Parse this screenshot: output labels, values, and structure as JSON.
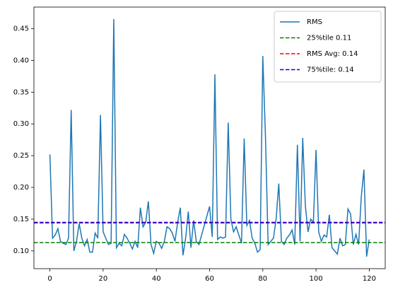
{
  "chart_data": {
    "type": "line",
    "x": [
      0,
      1,
      2,
      3,
      4,
      5,
      6,
      7,
      8,
      9,
      10,
      11,
      12,
      13,
      14,
      15,
      16,
      17,
      18,
      19,
      20,
      21,
      22,
      23,
      24,
      25,
      26,
      27,
      28,
      29,
      30,
      31,
      32,
      33,
      34,
      35,
      36,
      37,
      38,
      39,
      40,
      41,
      42,
      43,
      44,
      45,
      46,
      47,
      48,
      49,
      50,
      51,
      52,
      53,
      54,
      55,
      56,
      57,
      58,
      59,
      60,
      61,
      62,
      63,
      64,
      65,
      66,
      67,
      68,
      69,
      70,
      71,
      72,
      73,
      74,
      75,
      76,
      77,
      78,
      79,
      80,
      81,
      82,
      83,
      84,
      85,
      86,
      87,
      88,
      89,
      90,
      91,
      92,
      93,
      94,
      95,
      96,
      97,
      98,
      99,
      100,
      101,
      102,
      103,
      104,
      105,
      106,
      107,
      108,
      109,
      110,
      111,
      112,
      113,
      114,
      115,
      116,
      117,
      118,
      119,
      120
    ],
    "series": [
      {
        "name": "RMS",
        "color": "#1f77b4",
        "values": [
          0.252,
          0.12,
          0.125,
          0.135,
          0.115,
          0.112,
          0.11,
          0.12,
          0.322,
          0.1,
          0.115,
          0.143,
          0.12,
          0.108,
          0.118,
          0.098,
          0.098,
          0.128,
          0.12,
          0.314,
          0.13,
          0.12,
          0.11,
          0.112,
          0.465,
          0.105,
          0.112,
          0.108,
          0.126,
          0.12,
          0.112,
          0.103,
          0.115,
          0.105,
          0.168,
          0.138,
          0.145,
          0.178,
          0.11,
          0.096,
          0.115,
          0.112,
          0.104,
          0.115,
          0.138,
          0.135,
          0.128,
          0.115,
          0.145,
          0.168,
          0.093,
          0.12,
          0.162,
          0.105,
          0.148,
          0.115,
          0.11,
          0.125,
          0.14,
          0.155,
          0.17,
          0.122,
          0.378,
          0.118,
          0.122,
          0.12,
          0.122,
          0.302,
          0.15,
          0.13,
          0.138,
          0.125,
          0.112,
          0.277,
          0.14,
          0.148,
          0.12,
          0.112,
          0.098,
          0.102,
          0.407,
          0.28,
          0.11,
          0.115,
          0.12,
          0.15,
          0.206,
          0.115,
          0.11,
          0.12,
          0.125,
          0.133,
          0.11,
          0.267,
          0.115,
          0.278,
          0.17,
          0.13,
          0.15,
          0.145,
          0.259,
          0.13,
          0.115,
          0.125,
          0.122,
          0.157,
          0.105,
          0.1,
          0.095,
          0.12,
          0.108,
          0.11,
          0.166,
          0.158,
          0.11,
          0.126,
          0.11,
          0.185,
          0.228,
          0.091,
          0.118
        ]
      }
    ],
    "hlines": [
      {
        "name": "25%tile 0.11",
        "color": "green",
        "value": 0.113
      },
      {
        "name": "RMS Avg: 0.14",
        "color": "red",
        "value": 0.144
      },
      {
        "name": "75%tile: 0.14",
        "color": "blue",
        "value": 0.145
      }
    ],
    "xlim": [
      -6,
      126
    ],
    "xticks": [
      0,
      20,
      40,
      60,
      80,
      100,
      120
    ],
    "ylim": [
      0.072,
      0.484
    ],
    "yticks": [
      {
        "value": 0.1,
        "label": "0.10"
      },
      {
        "value": 0.15,
        "label": "0.15"
      },
      {
        "value": 0.2,
        "label": "0.20"
      },
      {
        "value": 0.25,
        "label": "0.25"
      },
      {
        "value": 0.3,
        "label": "0.30"
      },
      {
        "value": 0.35,
        "label": "0.35"
      },
      {
        "value": 0.4,
        "label": "0.40"
      },
      {
        "value": 0.45,
        "label": "0.45"
      }
    ],
    "grid": false,
    "legend": "upper right"
  }
}
